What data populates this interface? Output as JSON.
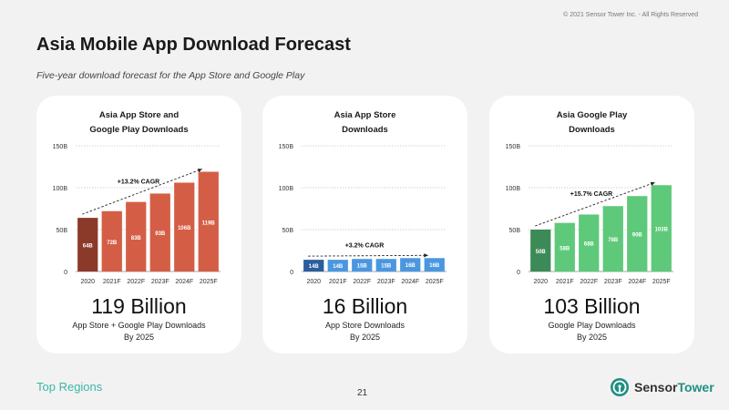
{
  "copyright": "© 2021 Sensor Tower Inc. - All Rights Reserved",
  "title": "Asia Mobile App Download Forecast",
  "subtitle": "Five-year download forecast for the App Store and Google Play",
  "footer": {
    "section": "Top Regions",
    "page_number": "21",
    "logo_text_part1": "Sensor",
    "logo_text_part2": "Tower",
    "logo_icon": "sensor-tower-logo-icon"
  },
  "cards": [
    {
      "title_line1": "Asia App Store and",
      "title_line2": "Google Play Downloads",
      "big_number": "119 Billion",
      "caption_line1": "App Store + Google Play Downloads",
      "caption_line2": "By 2025"
    },
    {
      "title_line1": "Asia App Store",
      "title_line2": "Downloads",
      "big_number": "16 Billion",
      "caption_line1": "App Store Downloads",
      "caption_line2": "By 2025"
    },
    {
      "title_line1": "Asia Google Play",
      "title_line2": "Downloads",
      "big_number": "103 Billion",
      "caption_line1": "Google Play Downloads",
      "caption_line2": "By 2025"
    }
  ],
  "chart_data": [
    {
      "type": "bar",
      "title": "Asia App Store and Google Play Downloads",
      "categories": [
        "2020",
        "2021F",
        "2022F",
        "2023F",
        "2024F",
        "2025F"
      ],
      "values": [
        64,
        72,
        83,
        93,
        106,
        119
      ],
      "value_labels": [
        "64B",
        "72B",
        "83B",
        "93B",
        "106B",
        "119B"
      ],
      "y_ticks": [
        "0",
        "50B",
        "100B",
        "150B"
      ],
      "y_tick_values": [
        0,
        50,
        100,
        150
      ],
      "ylim": [
        0,
        150
      ],
      "grid": true,
      "annotation": "+13.2% CAGR",
      "colors": {
        "base": "#8b3a2a",
        "forecast": "#d45e45"
      }
    },
    {
      "type": "bar",
      "title": "Asia App Store Downloads",
      "categories": [
        "2020",
        "2021F",
        "2022F",
        "2023F",
        "2024F",
        "2025F"
      ],
      "values": [
        14,
        14,
        15,
        15,
        16,
        16
      ],
      "value_labels": [
        "14B",
        "14B",
        "15B",
        "15B",
        "16B",
        "16B"
      ],
      "y_ticks": [
        "0",
        "50B",
        "100B",
        "150B"
      ],
      "y_tick_values": [
        0,
        50,
        100,
        150
      ],
      "ylim": [
        0,
        150
      ],
      "grid": true,
      "annotation": "+3.2% CAGR",
      "colors": {
        "base": "#2a5d9e",
        "forecast": "#4a97e0"
      }
    },
    {
      "type": "bar",
      "title": "Asia Google Play Downloads",
      "categories": [
        "2020",
        "2021F",
        "2022F",
        "2023F",
        "2024F",
        "2025F"
      ],
      "values": [
        50,
        58,
        68,
        78,
        90,
        103
      ],
      "value_labels": [
        "50B",
        "58B",
        "68B",
        "78B",
        "90B",
        "103B"
      ],
      "y_ticks": [
        "0",
        "50B",
        "100B",
        "150B"
      ],
      "y_tick_values": [
        0,
        50,
        100,
        150
      ],
      "ylim": [
        0,
        150
      ],
      "grid": true,
      "annotation": "+15.7% CAGR",
      "colors": {
        "base": "#3c8a57",
        "forecast": "#5ec97a"
      }
    }
  ]
}
